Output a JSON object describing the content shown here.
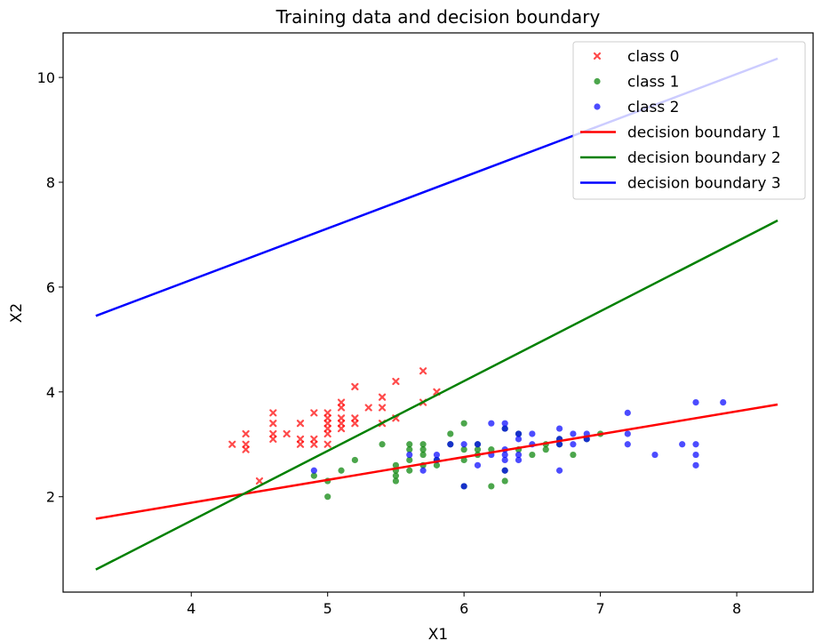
{
  "chart_data": {
    "type": "scatter",
    "title": "Training data and decision boundary",
    "xlabel": "X1",
    "ylabel": "X2",
    "xlim": [
      3.06,
      8.56
    ],
    "ylim": [
      0.18,
      10.85
    ],
    "xticks": [
      4,
      5,
      6,
      7,
      8
    ],
    "yticks": [
      2,
      4,
      6,
      8,
      10
    ],
    "grid": false,
    "legend_position": "top-right",
    "series": [
      {
        "name": "class 0",
        "kind": "scatter",
        "marker": "x",
        "color": "#ff0000",
        "points": [
          [
            4.3,
            3.0
          ],
          [
            4.4,
            2.9
          ],
          [
            4.4,
            3.0
          ],
          [
            4.4,
            3.2
          ],
          [
            4.5,
            2.3
          ],
          [
            4.6,
            3.1
          ],
          [
            4.6,
            3.2
          ],
          [
            4.6,
            3.4
          ],
          [
            4.6,
            3.6
          ],
          [
            4.7,
            3.2
          ],
          [
            4.8,
            3.0
          ],
          [
            4.8,
            3.1
          ],
          [
            4.8,
            3.4
          ],
          [
            4.9,
            3.0
          ],
          [
            4.9,
            3.1
          ],
          [
            4.9,
            3.6
          ],
          [
            5.0,
            3.0
          ],
          [
            5.0,
            3.2
          ],
          [
            5.0,
            3.3
          ],
          [
            5.0,
            3.4
          ],
          [
            5.0,
            3.5
          ],
          [
            5.0,
            3.6
          ],
          [
            5.1,
            3.3
          ],
          [
            5.1,
            3.4
          ],
          [
            5.1,
            3.5
          ],
          [
            5.1,
            3.7
          ],
          [
            5.1,
            3.8
          ],
          [
            5.2,
            3.4
          ],
          [
            5.2,
            3.5
          ],
          [
            5.2,
            4.1
          ],
          [
            5.3,
            3.7
          ],
          [
            5.4,
            3.4
          ],
          [
            5.4,
            3.7
          ],
          [
            5.4,
            3.9
          ],
          [
            5.5,
            3.5
          ],
          [
            5.5,
            4.2
          ],
          [
            5.7,
            3.8
          ],
          [
            5.7,
            4.4
          ],
          [
            5.8,
            4.0
          ]
        ]
      },
      {
        "name": "class 1",
        "kind": "scatter",
        "marker": "circle",
        "color": "#008000",
        "points": [
          [
            4.9,
            2.4
          ],
          [
            5.0,
            2.0
          ],
          [
            5.0,
            2.3
          ],
          [
            5.1,
            2.5
          ],
          [
            5.2,
            2.7
          ],
          [
            5.4,
            3.0
          ],
          [
            5.5,
            2.3
          ],
          [
            5.5,
            2.4
          ],
          [
            5.5,
            2.5
          ],
          [
            5.5,
            2.6
          ],
          [
            5.6,
            2.5
          ],
          [
            5.6,
            2.7
          ],
          [
            5.6,
            2.9
          ],
          [
            5.6,
            3.0
          ],
          [
            5.7,
            2.6
          ],
          [
            5.7,
            2.8
          ],
          [
            5.7,
            2.9
          ],
          [
            5.7,
            3.0
          ],
          [
            5.8,
            2.6
          ],
          [
            5.8,
            2.7
          ],
          [
            5.9,
            3.0
          ],
          [
            5.9,
            3.2
          ],
          [
            6.0,
            2.2
          ],
          [
            6.0,
            2.7
          ],
          [
            6.0,
            2.9
          ],
          [
            6.0,
            3.4
          ],
          [
            6.1,
            2.8
          ],
          [
            6.1,
            2.9
          ],
          [
            6.1,
            3.0
          ],
          [
            6.2,
            2.2
          ],
          [
            6.2,
            2.9
          ],
          [
            6.3,
            2.3
          ],
          [
            6.3,
            2.5
          ],
          [
            6.3,
            3.3
          ],
          [
            6.4,
            2.9
          ],
          [
            6.4,
            3.2
          ],
          [
            6.5,
            2.8
          ],
          [
            6.6,
            2.9
          ],
          [
            6.6,
            3.0
          ],
          [
            6.7,
            3.0
          ],
          [
            6.7,
            3.1
          ],
          [
            6.8,
            2.8
          ],
          [
            6.9,
            3.1
          ],
          [
            7.0,
            3.2
          ]
        ]
      },
      {
        "name": "class 2",
        "kind": "scatter",
        "marker": "circle",
        "color": "#0000ff",
        "points": [
          [
            4.9,
            2.5
          ],
          [
            5.6,
            2.8
          ],
          [
            5.7,
            2.5
          ],
          [
            5.8,
            2.7
          ],
          [
            5.8,
            2.8
          ],
          [
            5.9,
            3.0
          ],
          [
            6.0,
            2.2
          ],
          [
            6.0,
            3.0
          ],
          [
            6.1,
            2.6
          ],
          [
            6.1,
            3.0
          ],
          [
            6.2,
            2.8
          ],
          [
            6.2,
            3.4
          ],
          [
            6.3,
            2.5
          ],
          [
            6.3,
            2.7
          ],
          [
            6.3,
            2.8
          ],
          [
            6.3,
            2.9
          ],
          [
            6.3,
            3.3
          ],
          [
            6.3,
            3.4
          ],
          [
            6.4,
            2.7
          ],
          [
            6.4,
            2.8
          ],
          [
            6.4,
            3.1
          ],
          [
            6.4,
            3.2
          ],
          [
            6.5,
            3.0
          ],
          [
            6.5,
            3.2
          ],
          [
            6.7,
            2.5
          ],
          [
            6.7,
            3.0
          ],
          [
            6.7,
            3.1
          ],
          [
            6.7,
            3.3
          ],
          [
            6.8,
            3.0
          ],
          [
            6.8,
            3.2
          ],
          [
            6.9,
            3.1
          ],
          [
            6.9,
            3.2
          ],
          [
            7.2,
            3.0
          ],
          [
            7.2,
            3.2
          ],
          [
            7.2,
            3.6
          ],
          [
            7.4,
            2.8
          ],
          [
            7.6,
            3.0
          ],
          [
            7.7,
            2.6
          ],
          [
            7.7,
            2.8
          ],
          [
            7.7,
            3.0
          ],
          [
            7.7,
            3.8
          ],
          [
            7.9,
            3.8
          ]
        ]
      },
      {
        "name": "decision boundary 1",
        "kind": "line",
        "color": "#ff0000",
        "x": [
          3.3,
          8.3
        ],
        "y": [
          1.58,
          3.76
        ]
      },
      {
        "name": "decision boundary 2",
        "kind": "line",
        "color": "#008000",
        "x": [
          3.3,
          8.3
        ],
        "y": [
          0.61,
          7.27
        ]
      },
      {
        "name": "decision boundary 3",
        "kind": "line",
        "color": "#0000ff",
        "x": [
          3.3,
          8.3
        ],
        "y": [
          5.45,
          10.36
        ]
      }
    ]
  }
}
